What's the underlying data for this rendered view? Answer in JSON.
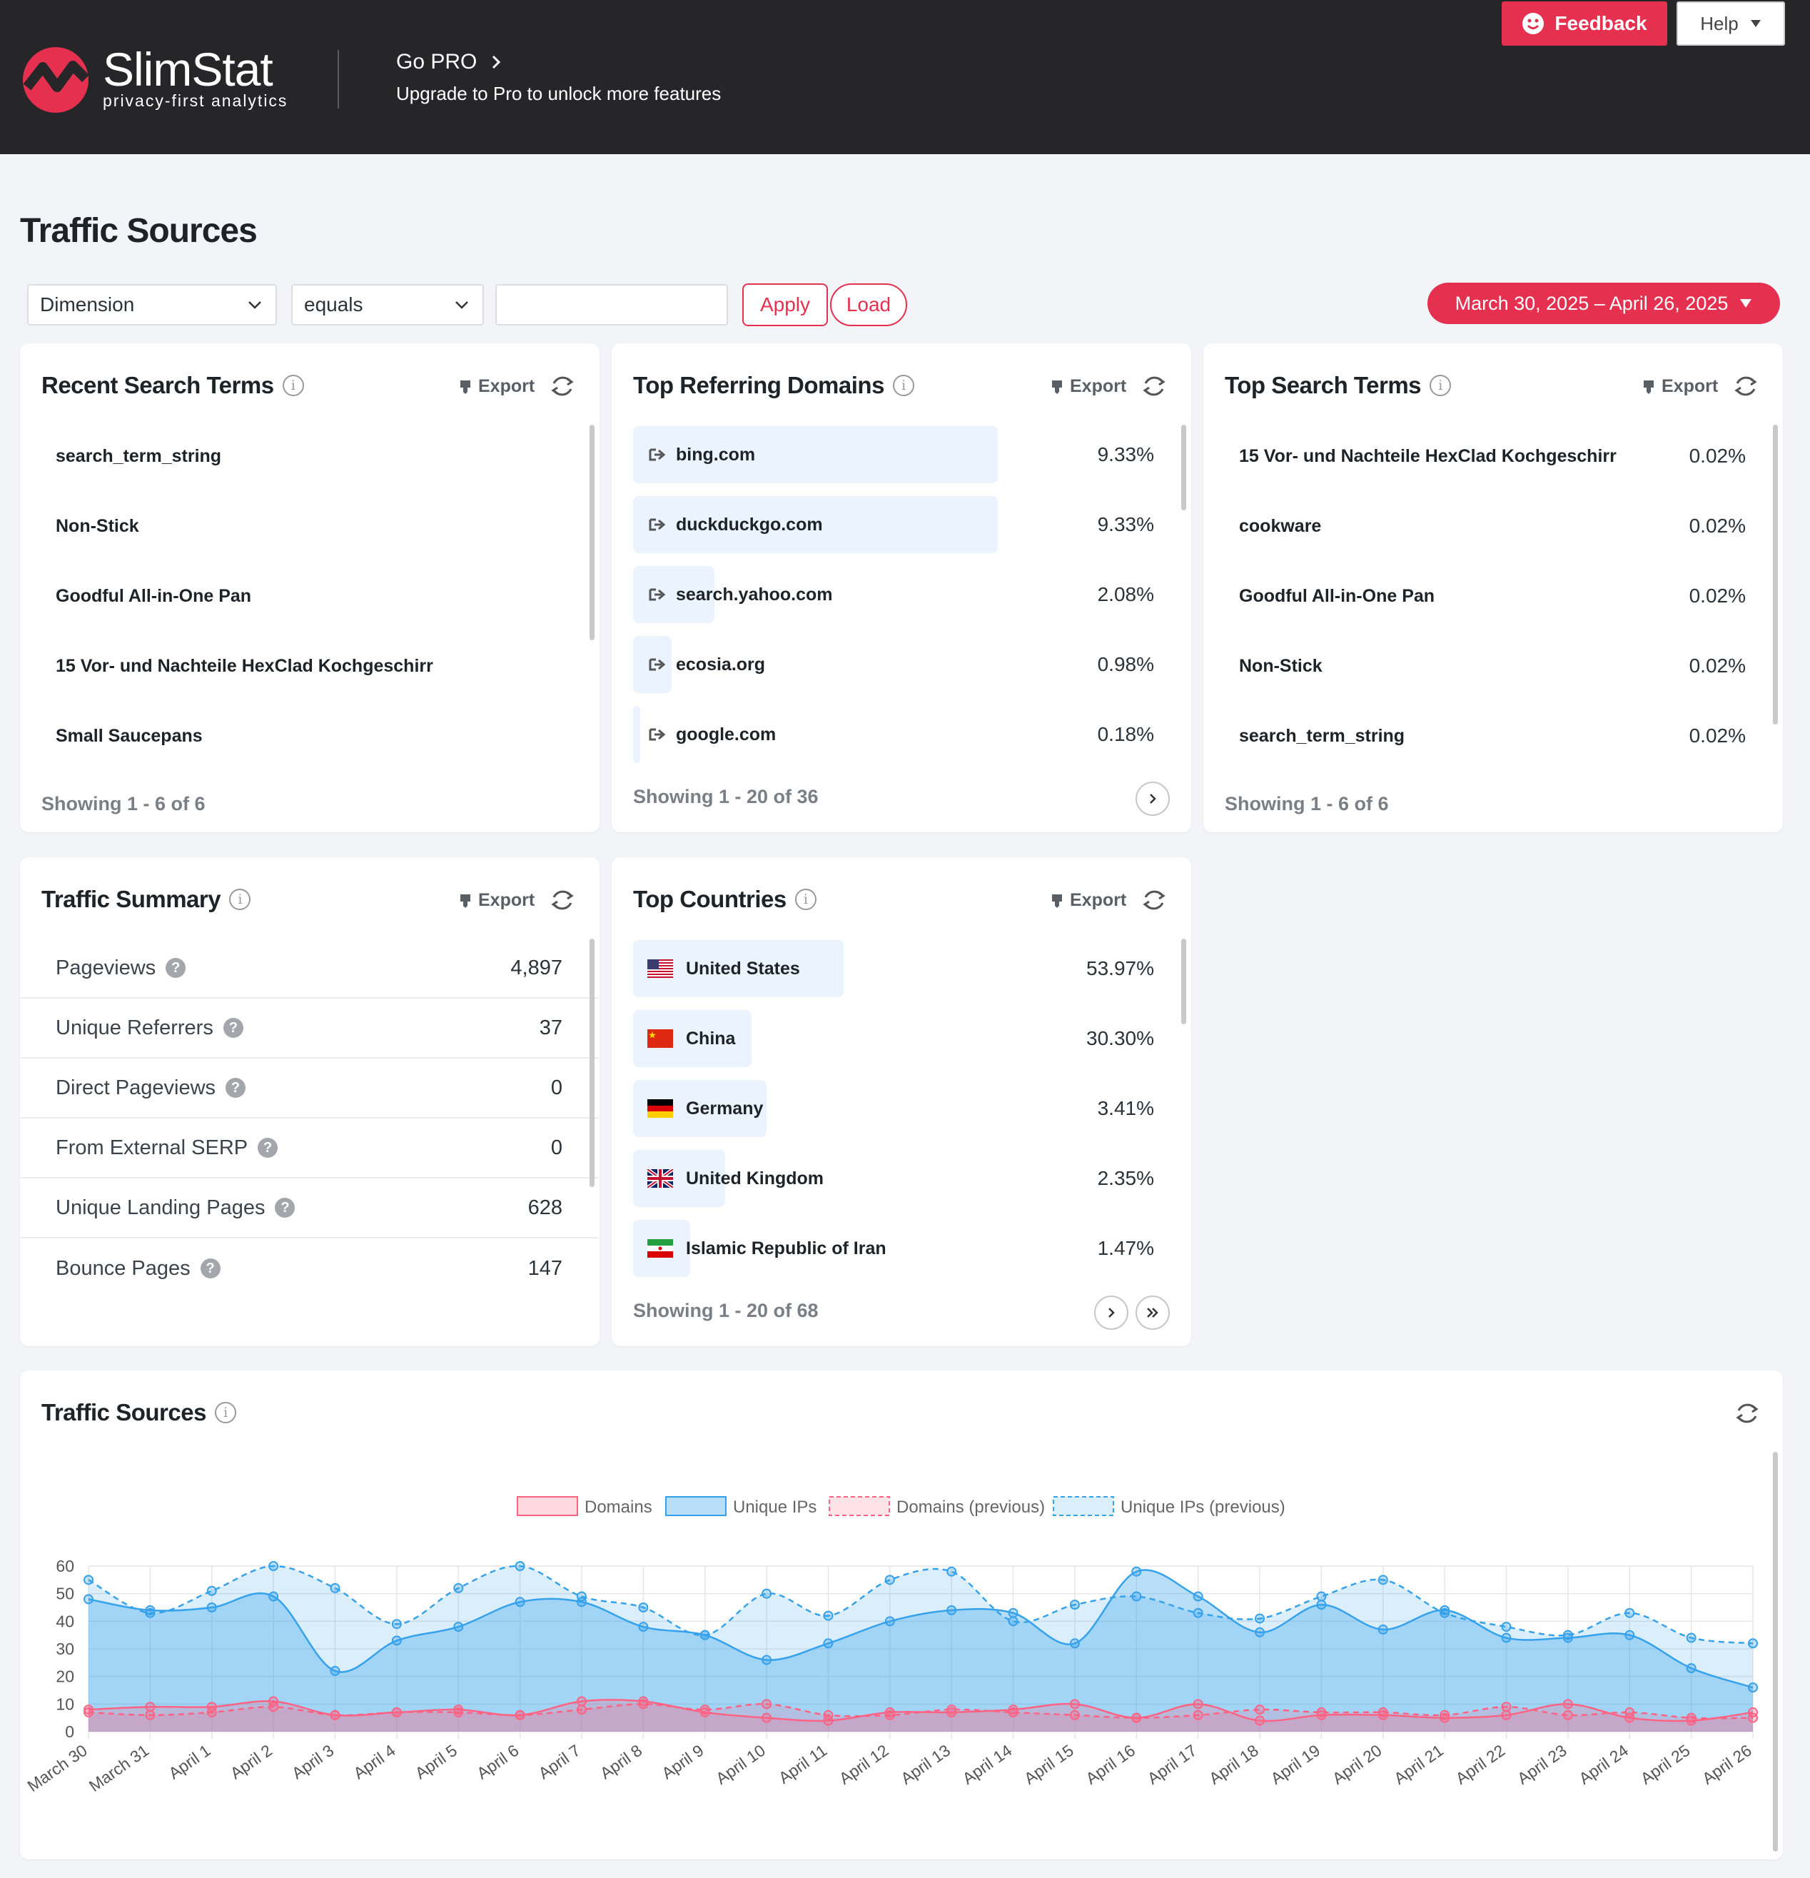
{
  "header": {
    "logo_name": "SlimStat",
    "logo_tagline": "privacy-first analytics",
    "gopro_title": "Go PRO",
    "gopro_subtitle": "Upgrade to Pro to unlock more features",
    "feedback_label": "Feedback",
    "help_label": "Help"
  },
  "page_title": "Traffic Sources",
  "filters": {
    "dimension": "Dimension",
    "operator": "equals",
    "value": "",
    "apply_label": "Apply",
    "load_label": "Load",
    "date_range": "March 30, 2025 – April 26, 2025"
  },
  "export_label": "Export",
  "colors": {
    "accent": "#e5304f",
    "header_bg": "#262629",
    "bar_bg": "#ebf3fe",
    "series_blue": "#36a2eb",
    "series_red": "#ff6384"
  },
  "recent_search_terms": {
    "title": "Recent Search Terms",
    "items": [
      "search_term_string",
      "Non-Stick",
      "Goodful All-in-One Pan",
      "15 Vor- und Nachteile HexClad Kochgeschirr",
      "Small Saucepans"
    ],
    "showing": "Showing 1 - 6 of 6"
  },
  "top_referring_domains": {
    "title": "Top Referring Domains",
    "items": [
      {
        "label": "bing.com",
        "value": "9.33%",
        "pct": 9.33
      },
      {
        "label": "duckduckgo.com",
        "value": "9.33%",
        "pct": 9.33
      },
      {
        "label": "search.yahoo.com",
        "value": "2.08%",
        "pct": 2.08
      },
      {
        "label": "ecosia.org",
        "value": "0.98%",
        "pct": 0.98
      },
      {
        "label": "google.com",
        "value": "0.18%",
        "pct": 0.18
      }
    ],
    "showing": "Showing 1 - 20 of 36"
  },
  "top_search_terms": {
    "title": "Top Search Terms",
    "items": [
      {
        "label": "15 Vor- und Nachteile HexClad Kochgeschirr",
        "value": "0.02%"
      },
      {
        "label": "cookware",
        "value": "0.02%"
      },
      {
        "label": "Goodful All-in-One Pan",
        "value": "0.02%"
      },
      {
        "label": "Non-Stick",
        "value": "0.02%"
      },
      {
        "label": "search_term_string",
        "value": "0.02%"
      }
    ],
    "showing": "Showing 1 - 6 of 6"
  },
  "traffic_summary": {
    "title": "Traffic Summary",
    "items": [
      {
        "label": "Pageviews",
        "value": "4,897"
      },
      {
        "label": "Unique Referrers",
        "value": "37"
      },
      {
        "label": "Direct Pageviews",
        "value": "0"
      },
      {
        "label": "From External SERP",
        "value": "0"
      },
      {
        "label": "Unique Landing Pages",
        "value": "628"
      },
      {
        "label": "Bounce Pages",
        "value": "147"
      }
    ]
  },
  "top_countries": {
    "title": "Top Countries",
    "items": [
      {
        "label": "United States",
        "value": "53.97%",
        "pct": 53.97,
        "flag": "us-flag-icon"
      },
      {
        "label": "China",
        "value": "30.30%",
        "pct": 30.3,
        "flag": "cn-flag-icon"
      },
      {
        "label": "Germany",
        "value": "3.41%",
        "pct": 3.41,
        "flag": "de-flag-icon"
      },
      {
        "label": "United Kingdom",
        "value": "2.35%",
        "pct": 2.35,
        "flag": "gb-flag-icon"
      },
      {
        "label": "Islamic Republic of Iran",
        "value": "1.47%",
        "pct": 1.47,
        "flag": "ir-flag-icon"
      }
    ],
    "showing": "Showing 1 - 20 of 68"
  },
  "traffic_chart": {
    "title": "Traffic Sources"
  },
  "chart_data": {
    "type": "area",
    "x": [
      "March 30",
      "March 31",
      "April 1",
      "April 2",
      "April 3",
      "April 4",
      "April 5",
      "April 6",
      "April 7",
      "April 8",
      "April 9",
      "April 10",
      "April 11",
      "April 12",
      "April 13",
      "April 14",
      "April 15",
      "April 16",
      "April 17",
      "April 18",
      "April 19",
      "April 20",
      "April 21",
      "April 22",
      "April 23",
      "April 24",
      "April 25",
      "April 26"
    ],
    "ylim": [
      0,
      60
    ],
    "yticks": [
      0,
      10,
      20,
      30,
      40,
      50,
      60
    ],
    "legend_position": "top",
    "grid": true,
    "series": [
      {
        "name": "Domains",
        "color": "#ff6384",
        "dashed": false,
        "values": [
          8,
          9,
          9,
          11,
          6,
          7,
          8,
          6,
          11,
          11,
          7,
          5,
          4,
          7,
          7,
          8,
          10,
          5,
          10,
          4,
          6,
          6,
          5,
          6,
          10,
          5,
          4,
          7
        ]
      },
      {
        "name": "Unique IPs",
        "color": "#36a2eb",
        "dashed": false,
        "values": [
          48,
          44,
          45,
          49,
          22,
          33,
          38,
          47,
          47,
          38,
          35,
          26,
          32,
          40,
          44,
          43,
          32,
          58,
          49,
          36,
          46,
          37,
          44,
          34,
          34,
          35,
          23,
          16
        ]
      },
      {
        "name": "Domains (previous)",
        "color": "#ff6384",
        "dashed": true,
        "values": [
          7,
          6,
          7,
          9,
          6,
          7,
          7,
          6,
          8,
          10,
          8,
          10,
          6,
          6,
          8,
          7,
          6,
          5,
          6,
          8,
          7,
          7,
          6,
          9,
          6,
          7,
          5,
          5
        ]
      },
      {
        "name": "Unique IPs (previous)",
        "color": "#36a2eb",
        "dashed": true,
        "values": [
          55,
          43,
          51,
          60,
          52,
          39,
          52,
          60,
          49,
          45,
          35,
          50,
          42,
          55,
          58,
          40,
          46,
          49,
          43,
          41,
          49,
          55,
          43,
          38,
          35,
          43,
          34,
          32
        ]
      }
    ]
  }
}
